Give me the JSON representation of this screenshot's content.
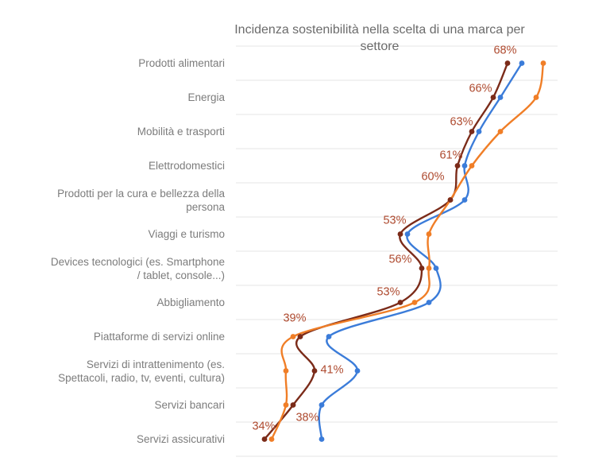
{
  "header": {
    "title_display": "Incidenza sostenibilità nella scelta di una marca per\nsettore"
  },
  "chart_data": {
    "type": "line",
    "subtype": "smooth-lines-with-markers",
    "title": "Incidenza sostenibilità nella scelta di una marca per settore",
    "orientation": "categories-on-y-axis, value-axis-horizontal",
    "xlabel": "",
    "ylabel": "",
    "categories": [
      "Prodotti alimentari",
      "Energia",
      "Mobilità e trasporti",
      "Elettrodomestici",
      "Prodotti per la cura e bellezza della\npersona",
      "Viaggi e turismo",
      "Devices tecnologici (es. Smartphone\n/ tablet, console...)",
      "Abbigliamento",
      "Piattaforme di servizi online",
      "Servizi di intrattenimento (es.\nSpettacoli, radio, tv, eventi, cultura)",
      "Servizi bancari",
      "Servizi assicurativi"
    ],
    "series": [
      {
        "name": "serie-rosso-scuro",
        "color": "#7B2B19",
        "values": [
          68,
          66,
          63,
          61,
          60,
          53,
          56,
          53,
          39,
          41,
          38,
          34
        ],
        "data_labels": [
          "68%",
          "66%",
          "63%",
          "61%",
          "60%",
          "53%",
          "56%",
          "53%",
          "39%",
          "41%",
          "38%",
          "34%"
        ]
      },
      {
        "name": "serie-blu",
        "color": "#3B7CD9",
        "values": [
          70,
          67,
          64,
          62,
          62,
          54,
          58,
          57,
          43,
          47,
          42,
          42
        ],
        "data_labels": null
      },
      {
        "name": "serie-arancione",
        "color": "#F07E27",
        "values": [
          73,
          72,
          67,
          63,
          60,
          57,
          57,
          55,
          38,
          37,
          37,
          35
        ],
        "data_labels": null
      }
    ],
    "value_axis": {
      "min": 30,
      "max": 75,
      "tick_labels_visible": false
    },
    "category_axis": {
      "labels_visible": true
    },
    "grid": "horizontal",
    "legend": "none",
    "style": {
      "data_label_color": "#AE4A2F",
      "title_color": "#6B6B6B",
      "category_label_color": "#7C7C7C",
      "gridline_color": "#E4E4E4",
      "background": "#FFFFFF"
    }
  }
}
